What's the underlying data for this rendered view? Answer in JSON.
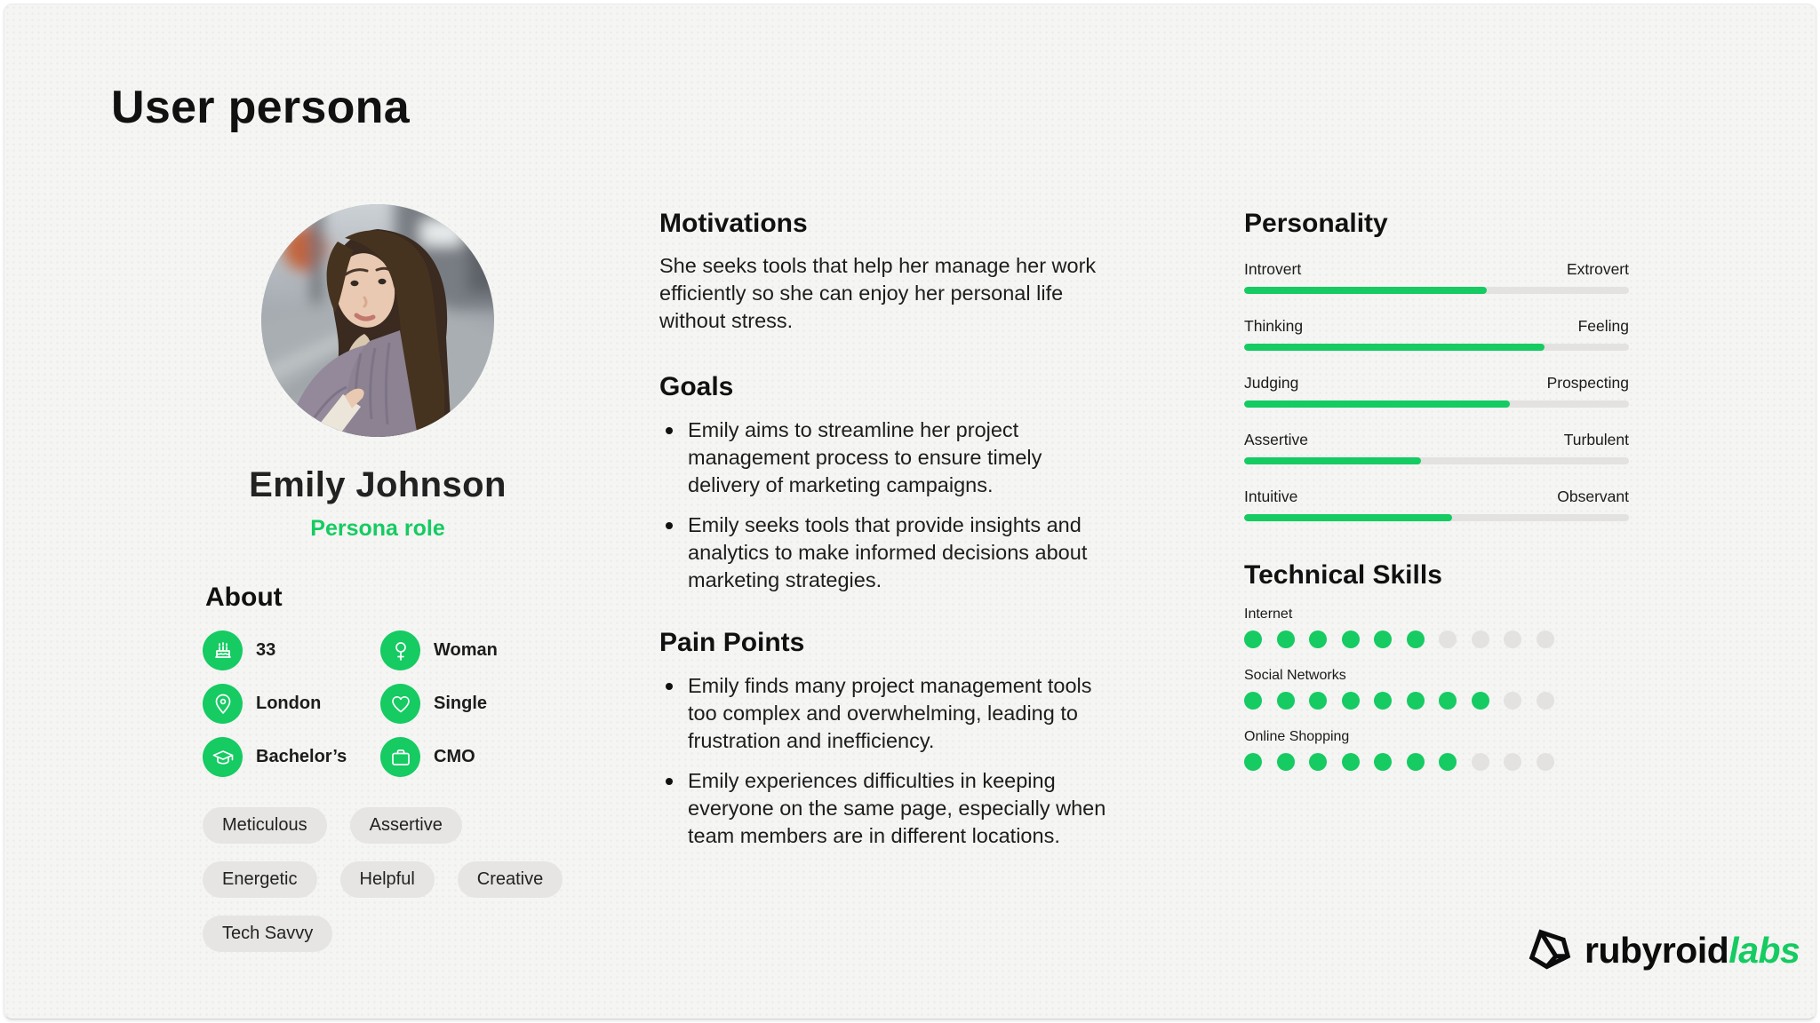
{
  "page": {
    "title": "User persona"
  },
  "profile": {
    "name": "Emily Johnson",
    "role": "Persona role"
  },
  "about": {
    "heading": "About",
    "items": [
      {
        "icon": "birthday-cake-icon",
        "value": "33"
      },
      {
        "icon": "female-gender-icon",
        "value": "Woman"
      },
      {
        "icon": "location-pin-icon",
        "value": "London"
      },
      {
        "icon": "heart-icon",
        "value": "Single"
      },
      {
        "icon": "graduation-cap-icon",
        "value": "Bachelor’s"
      },
      {
        "icon": "briefcase-icon",
        "value": "CMO"
      }
    ],
    "tags": [
      "Meticulous",
      "Assertive",
      "Energetic",
      "Helpful",
      "Creative",
      "Tech Savvy"
    ]
  },
  "motivations": {
    "heading": "Motivations",
    "text": "She seeks tools that help her manage her work efficiently so she can enjoy her personal life without stress."
  },
  "goals": {
    "heading": "Goals",
    "items": [
      "Emily aims to streamline her project management process to ensure timely delivery of marketing campaigns.",
      "Emily seeks tools that provide insights and analytics to make informed decisions about marketing strategies."
    ]
  },
  "pain_points": {
    "heading": "Pain Points",
    "items": [
      "Emily finds many project management tools too complex and overwhelming, leading to frustration and inefficiency.",
      "Emily experiences difficulties in keeping everyone on the same page, especially when team members are in different locations."
    ]
  },
  "personality": {
    "heading": "Personality",
    "sliders": [
      {
        "left": "Introvert",
        "right": "Extrovert",
        "value": 63
      },
      {
        "left": "Thinking",
        "right": "Feeling",
        "value": 78
      },
      {
        "left": "Judging",
        "right": "Prospecting",
        "value": 69
      },
      {
        "left": "Assertive",
        "right": "Turbulent",
        "value": 46
      },
      {
        "left": "Intuitive",
        "right": "Observant",
        "value": 54
      }
    ]
  },
  "technical_skills": {
    "heading": "Technical Skills",
    "scale_max": 10,
    "skills": [
      {
        "name": "Internet",
        "level": 6
      },
      {
        "name": "Social Networks",
        "level": 8
      },
      {
        "name": "Online Shopping",
        "level": 7
      }
    ]
  },
  "brand": {
    "black": "rubyroid",
    "green": "labs"
  },
  "colors": {
    "accent_green": "#15CB62",
    "pill_bg": "#e6e5e3",
    "track_gray": "#e3e2e0",
    "text_dark": "#161616"
  }
}
